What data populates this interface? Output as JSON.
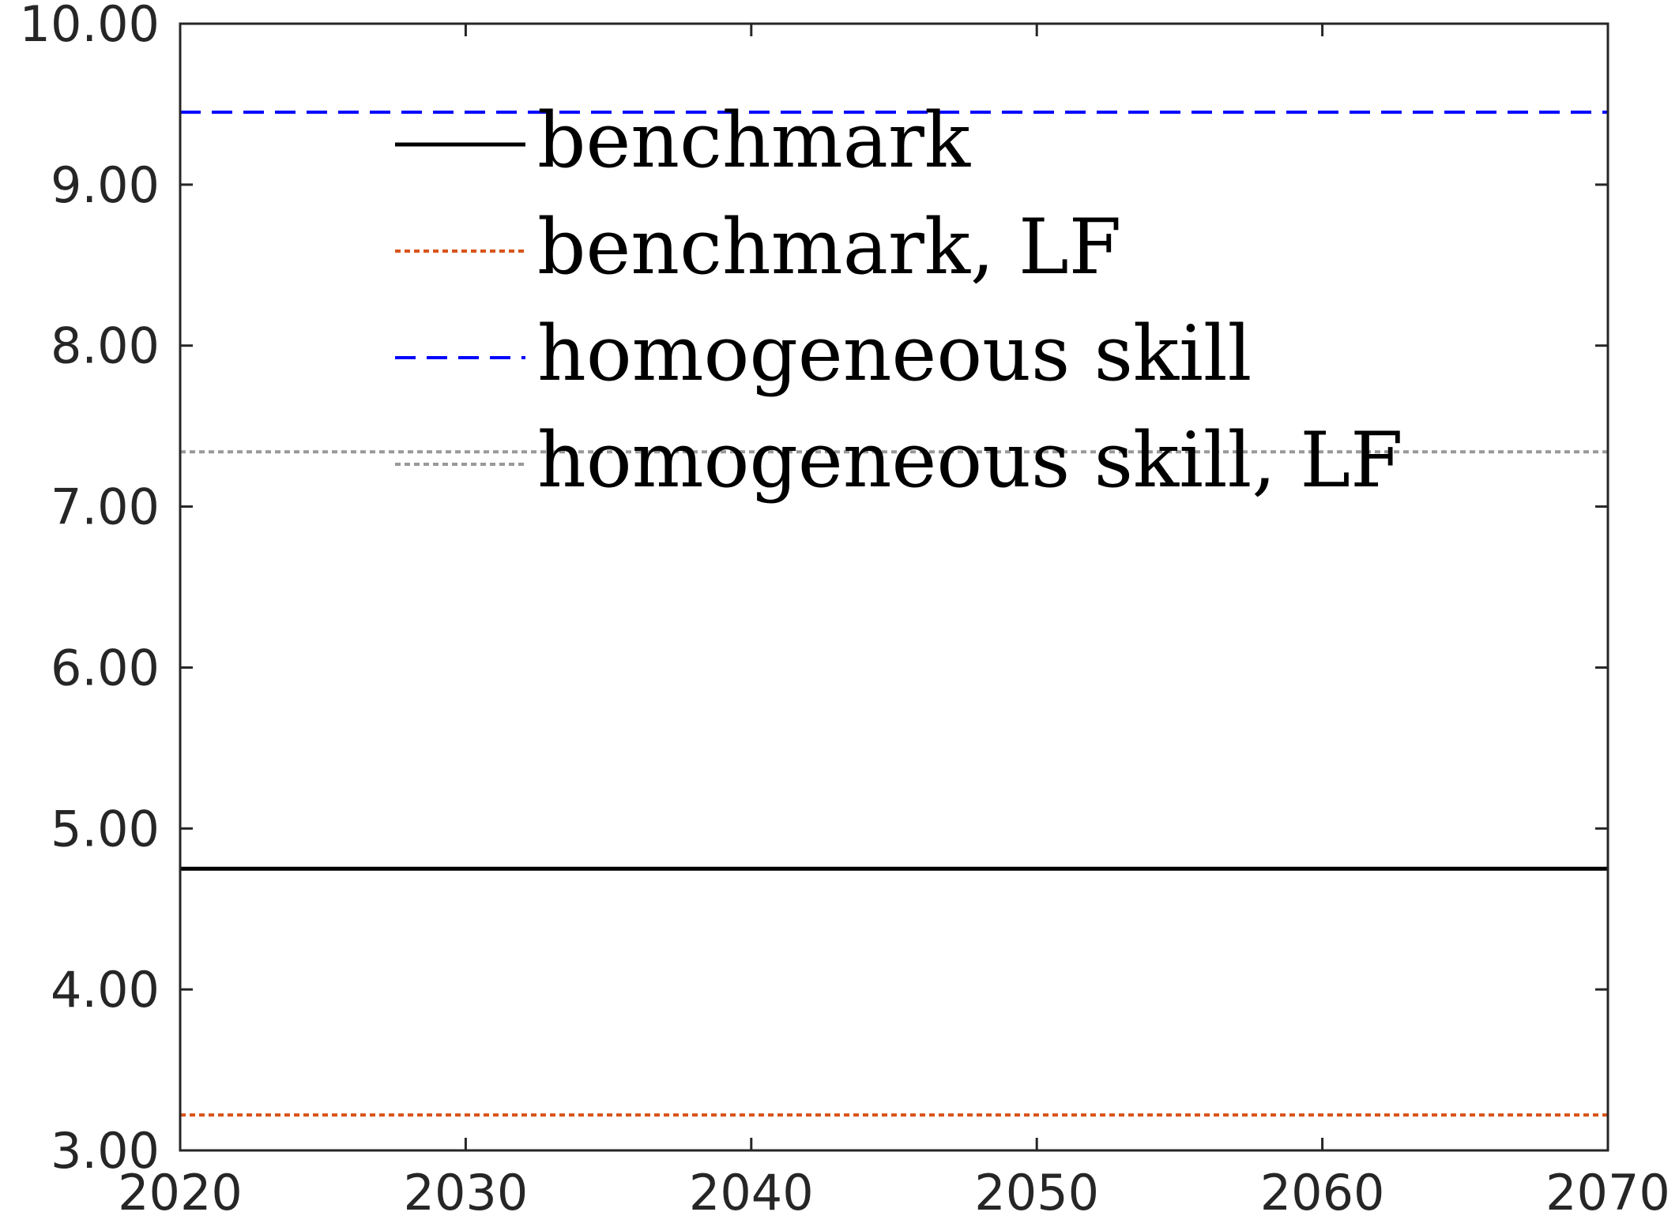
{
  "chart_data": {
    "type": "line",
    "title": "",
    "xlabel": "",
    "ylabel": "",
    "xlim": [
      2020,
      2070
    ],
    "ylim": [
      3.0,
      10.0
    ],
    "x": [
      2020,
      2070
    ],
    "xticks": [
      2020,
      2030,
      2040,
      2050,
      2060,
      2070
    ],
    "xtick_labels": [
      "2020",
      "2030",
      "2040",
      "2050",
      "2060",
      "2070"
    ],
    "yticks": [
      3,
      4,
      5,
      6,
      7,
      8,
      9,
      10
    ],
    "ytick_labels": [
      "3.00",
      "4.00",
      "5.00",
      "6.00",
      "7.00",
      "8.00",
      "9.00",
      "10.00"
    ],
    "grid": false,
    "legend_position": "top",
    "series": [
      {
        "name": "benchmark",
        "values": [
          4.75,
          4.75
        ],
        "color": "#000000",
        "style": "solid"
      },
      {
        "name": "benchmark, LF",
        "values": [
          3.22,
          3.22
        ],
        "color": "#D95319",
        "style": "dotted"
      },
      {
        "name": "homogeneous skill",
        "values": [
          9.45,
          9.45
        ],
        "color": "#0000FF",
        "style": "dashed"
      },
      {
        "name": "homogeneous skill, LF",
        "values": [
          7.34,
          7.34
        ],
        "color": "#999999",
        "style": "dotted"
      }
    ]
  }
}
